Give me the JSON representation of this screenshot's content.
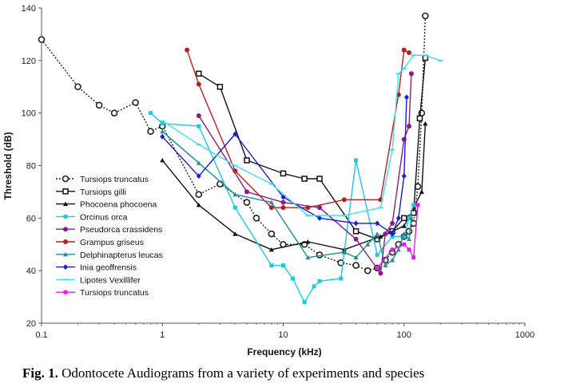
{
  "chart_data": {
    "type": "line",
    "title": "",
    "xlabel": "Frequency (kHz)",
    "ylabel": "Threshold (dB)",
    "xscale": "log",
    "xlim": [
      0.1,
      1000
    ],
    "ylim": [
      20,
      140
    ],
    "xticks": [
      0.1,
      1,
      10,
      100,
      1000
    ],
    "xtick_labels": [
      "0.1",
      "1",
      "10",
      "100",
      "1000"
    ],
    "yticks": [
      20,
      40,
      60,
      80,
      100,
      120,
      140
    ],
    "ytick_labels": [
      "20",
      "40",
      "60",
      "80",
      "100",
      "120",
      "140"
    ],
    "legend_position": "left",
    "series": [
      {
        "name": "Tursiops truncatus",
        "color": "#222222",
        "marker": "circle-open",
        "dash": "2,2",
        "x": [
          0.1,
          0.2,
          0.3,
          0.4,
          0.6,
          0.8,
          1,
          2,
          3,
          5,
          6,
          8,
          10,
          15,
          20,
          30,
          40,
          50,
          60,
          70,
          80,
          90,
          100,
          110,
          120,
          130,
          140,
          150
        ],
        "y": [
          128,
          110,
          103,
          100,
          104,
          93,
          95,
          69,
          73,
          66,
          60,
          54,
          50,
          50,
          46,
          43,
          42,
          40,
          41,
          44,
          47,
          50,
          53,
          55,
          58,
          72,
          100,
          137
        ]
      },
      {
        "name": "Tursiops gilli",
        "color": "#111111",
        "marker": "square-open",
        "dash": "",
        "x": [
          2,
          3,
          5,
          10,
          15,
          20,
          40,
          60,
          80,
          100,
          120,
          135,
          150
        ],
        "y": [
          115,
          110,
          82,
          77,
          75,
          75,
          55,
          52,
          55,
          60,
          62,
          98,
          121
        ]
      },
      {
        "name": "Phocoena phocoena",
        "color": "#111111",
        "marker": "triangle",
        "dash": "",
        "x": [
          1,
          2,
          4,
          8,
          16,
          32,
          64,
          100,
          120,
          140,
          150
        ],
        "y": [
          82,
          65,
          54,
          48,
          51,
          48,
          53,
          57,
          64,
          70,
          96
        ]
      },
      {
        "name": "Orcinus orca",
        "color": "#1ec8e6",
        "marker": "square",
        "dash": "",
        "x": [
          0.8,
          1,
          2,
          4,
          8,
          10,
          12,
          15,
          18,
          20,
          30,
          40,
          60,
          80,
          100,
          110,
          120
        ],
        "y": [
          100,
          96,
          95,
          64,
          42,
          42,
          37,
          28,
          34,
          36,
          37,
          82,
          46,
          53,
          53,
          60,
          65
        ]
      },
      {
        "name": "Pseudorca crassidens",
        "color": "#8b1a8b",
        "marker": "circle",
        "dash": "",
        "x": [
          2,
          5,
          10,
          20,
          40,
          64,
          70,
          80,
          100,
          110,
          115
        ],
        "y": [
          99,
          70,
          66,
          64,
          52,
          39,
          54,
          58,
          90,
          95,
          115
        ]
      },
      {
        "name": "Grampus griseus",
        "color": "#b22222",
        "marker": "circle",
        "dash": "",
        "x": [
          1.6,
          2,
          4,
          8,
          10,
          16,
          32,
          64,
          90,
          100,
          110
        ],
        "y": [
          124,
          111,
          78,
          64,
          64,
          64,
          67,
          67,
          107,
          124,
          123
        ]
      },
      {
        "name": "Delphinapterus leucas",
        "color": "#1f8f8f",
        "marker": "triangle",
        "dash": "",
        "x": [
          1,
          2,
          4,
          8,
          16,
          32,
          40,
          50,
          60,
          70,
          80,
          90,
          100,
          110,
          115
        ],
        "y": [
          93,
          81,
          69,
          66,
          45,
          47,
          45,
          50,
          54,
          42,
          44,
          48,
          54,
          52,
          60
        ]
      },
      {
        "name": "Inia geoffrensis",
        "color": "#1a1ad8",
        "marker": "diamond",
        "dash": "",
        "x": [
          1,
          2,
          4,
          10,
          20,
          40,
          60,
          80,
          90,
          100,
          105
        ],
        "y": [
          91,
          76,
          92,
          68,
          60,
          58,
          58,
          54,
          60,
          76,
          106
        ]
      },
      {
        "name": "Lipotes Vexillifer",
        "color": "#3ee0ee",
        "marker": "dash",
        "dash": "",
        "x": [
          1,
          2,
          4,
          8,
          16,
          32,
          64,
          80,
          90,
          100,
          120,
          150,
          200
        ],
        "y": [
          97,
          88,
          80,
          73,
          61,
          61,
          64,
          86,
          115,
          117,
          122,
          122,
          120
        ]
      },
      {
        "name": "Tursiops truncatus",
        "color": "#e020e0",
        "marker": "square",
        "dash": "",
        "x": [
          60,
          80,
          100,
          110,
          120,
          130
        ],
        "y": [
          41,
          48,
          50,
          48,
          45,
          65
        ]
      }
    ]
  },
  "caption": {
    "prefix": "Fig. 1.",
    "text": "Odontocete Audiograms from a variety of experiments and species"
  }
}
